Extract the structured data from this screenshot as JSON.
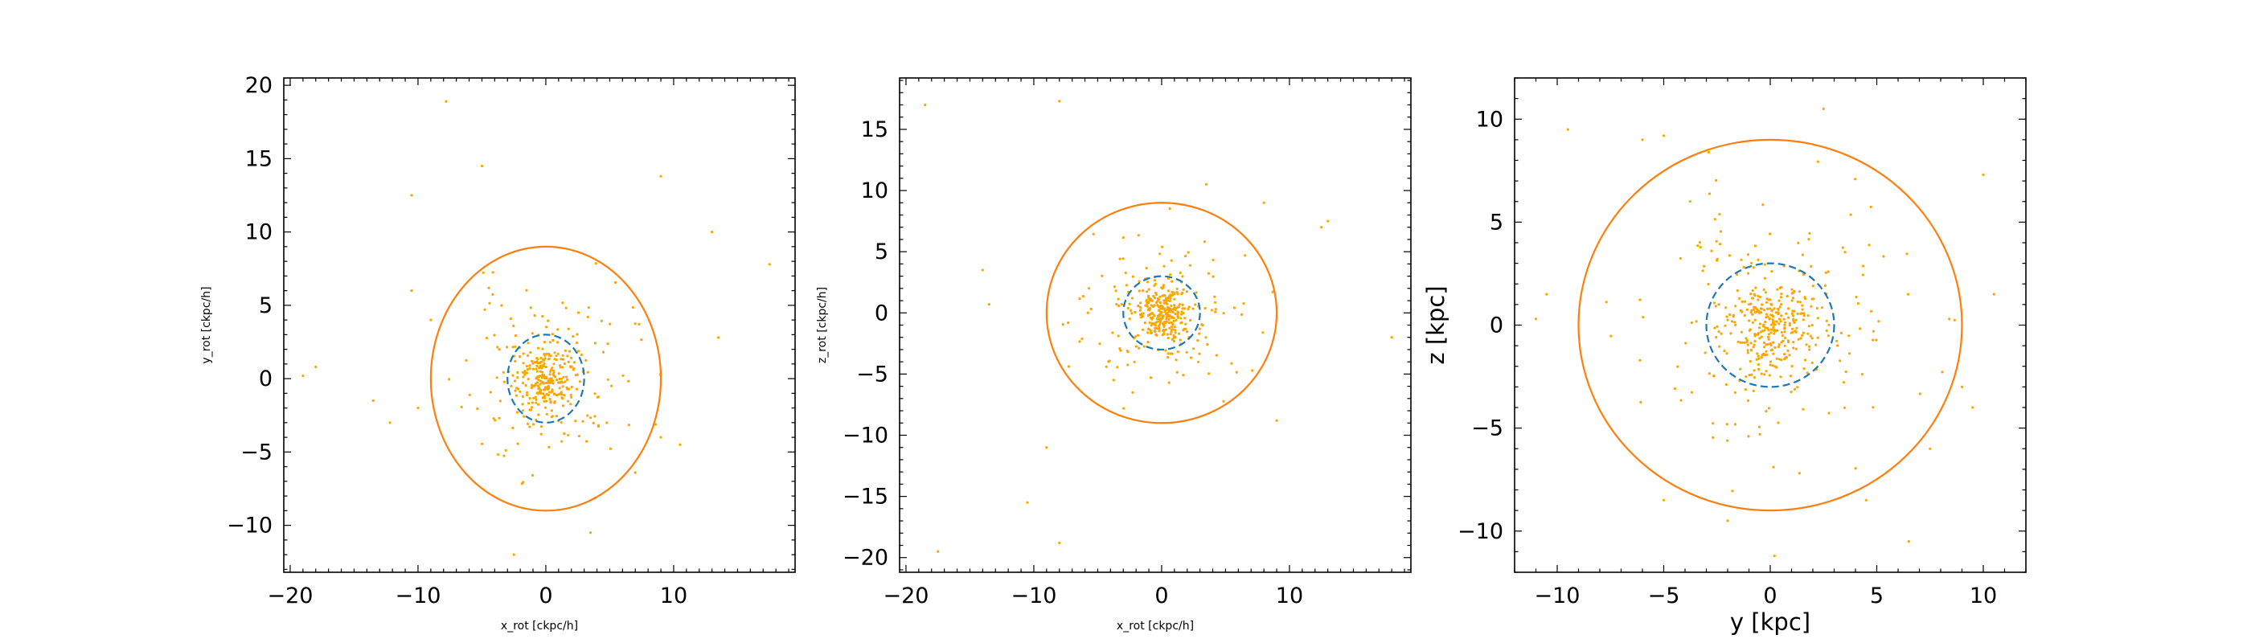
{
  "chart_data": [
    {
      "type": "scatter",
      "xlabel": "x_rot [ckpc/h]",
      "ylabel": "y_rot [ckpc/h]",
      "xlim": [
        -20.5,
        19.5
      ],
      "ylim": [
        -13.2,
        20.5
      ],
      "xticks": [
        -20,
        -10,
        0,
        10
      ],
      "yticks": [
        -10,
        -5,
        0,
        5,
        10,
        15,
        20
      ],
      "label_size": "small",
      "circles": [
        {
          "name": "outer-circle",
          "r": 9,
          "style": "solid",
          "color": "#ff7f0e"
        },
        {
          "name": "inner-circle",
          "r": 3,
          "style": "dashed",
          "color": "#1f77b4"
        }
      ],
      "points_color": "#ffa500",
      "outliers": [
        [
          -7.8,
          18.9
        ],
        [
          -5,
          14.5
        ],
        [
          -10.5,
          12.5
        ],
        [
          9,
          13.8
        ],
        [
          13,
          10
        ],
        [
          17.5,
          7.8
        ],
        [
          -19,
          0.2
        ],
        [
          -18,
          0.8
        ],
        [
          -13.5,
          -1.5
        ],
        [
          -12.2,
          -3
        ],
        [
          -10.5,
          6
        ],
        [
          -9,
          4
        ],
        [
          13.5,
          2.8
        ],
        [
          -2.5,
          -12
        ],
        [
          3.5,
          -10.5
        ],
        [
          9,
          -4
        ],
        [
          10.5,
          -4.5
        ],
        [
          -10,
          -2
        ]
      ],
      "halo": {
        "count": 150,
        "sigma": 3.2,
        "max_r": 9.5,
        "seed": 11
      },
      "core": {
        "count": 220,
        "sigma": 1.05,
        "max_r": 3.5,
        "seed": 12
      }
    },
    {
      "type": "scatter",
      "xlabel": "x_rot [ckpc/h]",
      "ylabel": "z_rot [ckpc/h]",
      "xlim": [
        -20.5,
        19.5
      ],
      "ylim": [
        -21.2,
        19.2
      ],
      "xticks": [
        -20,
        -10,
        0,
        10
      ],
      "yticks": [
        -20,
        -15,
        -10,
        -5,
        0,
        5,
        10,
        15
      ],
      "label_size": "small",
      "circles": [
        {
          "name": "outer-circle",
          "r": 9,
          "style": "solid",
          "color": "#ff7f0e"
        },
        {
          "name": "inner-circle",
          "r": 3,
          "style": "dashed",
          "color": "#1f77b4"
        }
      ],
      "points_color": "#ffa500",
      "outliers": [
        [
          -18.5,
          17
        ],
        [
          -8,
          17.3
        ],
        [
          -10.5,
          -15.5
        ],
        [
          -17.5,
          -19.5
        ],
        [
          -8,
          -18.8
        ],
        [
          -13.5,
          0.7
        ],
        [
          -9,
          -11
        ],
        [
          13,
          7.5
        ],
        [
          12.5,
          7
        ],
        [
          18,
          -2
        ],
        [
          9,
          -8.8
        ],
        [
          -14,
          3.5
        ],
        [
          3.5,
          10.5
        ],
        [
          8,
          9
        ]
      ],
      "halo": {
        "count": 160,
        "sigma": 3.4,
        "max_r": 9.5,
        "seed": 21
      },
      "core": {
        "count": 230,
        "sigma": 1.0,
        "max_r": 3.5,
        "seed": 22
      }
    },
    {
      "type": "scatter",
      "xlabel": "y [kpc]",
      "ylabel": "z [kpc]",
      "xlim": [
        -12,
        12
      ],
      "ylim": [
        -12,
        12
      ],
      "xticks": [
        -10,
        -5,
        0,
        5,
        10
      ],
      "yticks": [
        -10,
        -5,
        0,
        5,
        10
      ],
      "label_size": "large",
      "circles": [
        {
          "name": "outer-circle",
          "r": 9,
          "style": "solid",
          "color": "#ff7f0e"
        },
        {
          "name": "inner-circle",
          "r": 3,
          "style": "dashed",
          "color": "#1f77b4"
        }
      ],
      "points_color": "#ffa500",
      "outliers": [
        [
          -9.5,
          9.5
        ],
        [
          -6,
          9
        ],
        [
          -5,
          9.2
        ],
        [
          2.5,
          10.5
        ],
        [
          -11,
          0.3
        ],
        [
          -10.5,
          1.5
        ],
        [
          10,
          7.3
        ],
        [
          10.5,
          1.5
        ],
        [
          9.5,
          -4
        ],
        [
          7.5,
          -6
        ],
        [
          6.5,
          -10.5
        ],
        [
          0.2,
          -11.2
        ],
        [
          -5,
          -8.5
        ],
        [
          -2,
          -9.5
        ],
        [
          4.5,
          -8.5
        ],
        [
          9,
          -3
        ]
      ],
      "halo": {
        "count": 170,
        "sigma": 3.4,
        "max_r": 9.3,
        "seed": 31
      },
      "core": {
        "count": 260,
        "sigma": 1.1,
        "max_r": 3.5,
        "seed": 32
      }
    }
  ]
}
